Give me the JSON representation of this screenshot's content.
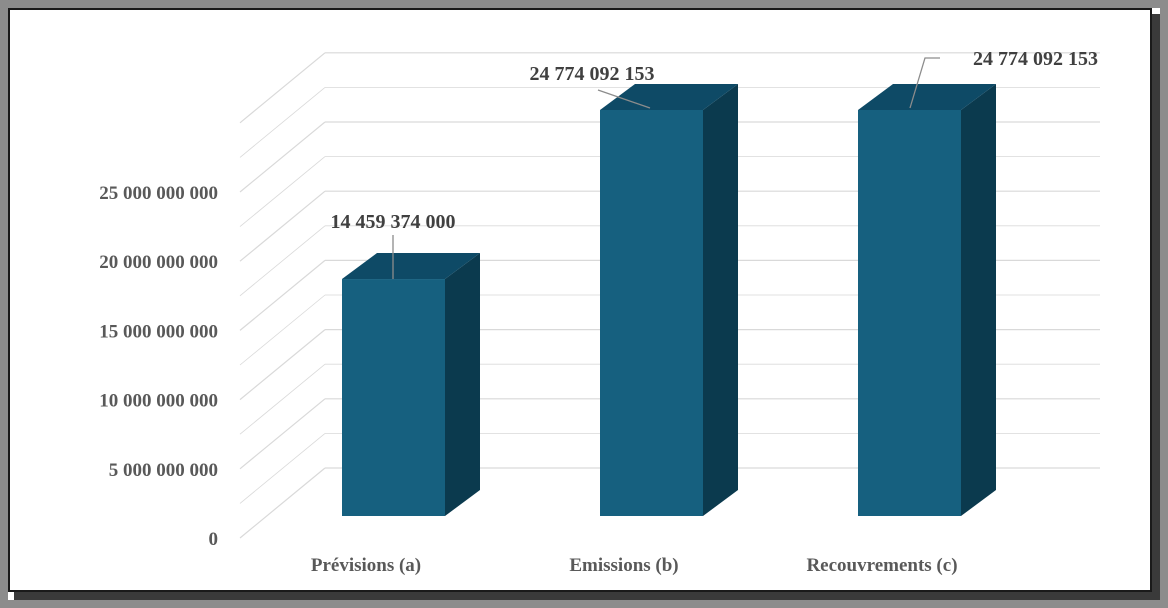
{
  "chart_data": {
    "type": "bar",
    "style": "3d-column",
    "categories": [
      "Prévisions (a)",
      "Emissions (b)",
      "Recouvrements (c)"
    ],
    "values": [
      14459374000,
      24774092153,
      24774092153
    ],
    "data_labels": [
      "14 459 374 000",
      "24 774 092 153",
      "24 774 092 153"
    ],
    "yticks": [
      0,
      5000000000,
      10000000000,
      15000000000,
      20000000000,
      25000000000
    ],
    "ytick_labels": [
      "0",
      "5 000 000 000",
      "10 000 000 000",
      "15 000 000 000",
      "20 000 000 000",
      "25 000 000 000"
    ],
    "ylim": [
      0,
      25000000000
    ],
    "grid": true,
    "legend": "none",
    "colors": {
      "bar_front": "#16607f",
      "bar_top": "#0e4a66",
      "bar_side": "#0b3a4e",
      "grid": "#d9d9d9",
      "leader": "#8c8c8c"
    }
  }
}
